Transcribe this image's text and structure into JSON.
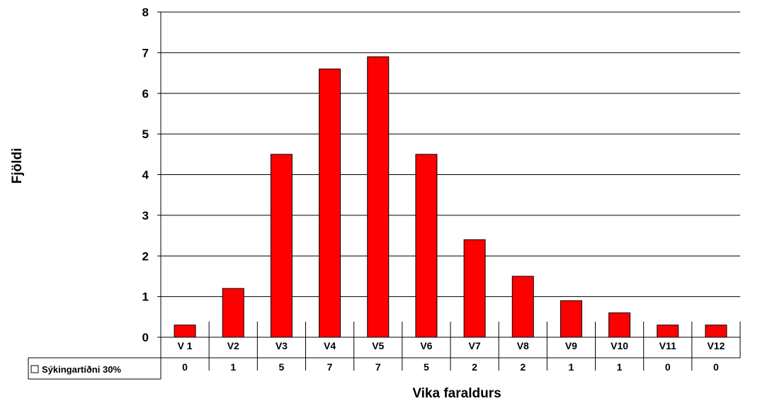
{
  "chart_data": {
    "type": "bar",
    "title": "",
    "xlabel": "Vika faraldurs",
    "ylabel": "Fjöldi",
    "ylim": [
      0,
      8
    ],
    "yticks": [
      0,
      1,
      2,
      3,
      4,
      5,
      6,
      7,
      8
    ],
    "grid": true,
    "categories": [
      "V 1",
      "V2",
      "V3",
      "V4",
      "V5",
      "V6",
      "V7",
      "V8",
      "V9",
      "V10",
      "V11",
      "V12"
    ],
    "series": [
      {
        "name": "Sýkingartíðni 30%",
        "color": "#ff0000",
        "values": [
          0.3,
          1.2,
          4.5,
          6.6,
          6.9,
          4.5,
          2.4,
          1.5,
          0.9,
          0.6,
          0.3,
          0.3
        ],
        "table_values": [
          "0",
          "1",
          "5",
          "7",
          "7",
          "5",
          "2",
          "2",
          "1",
          "1",
          "0",
          "0"
        ]
      }
    ]
  }
}
